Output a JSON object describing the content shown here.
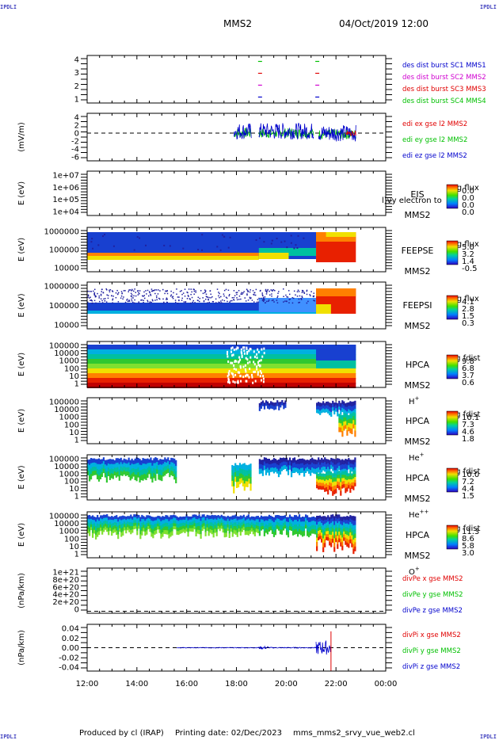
{
  "corner_label": "IPDLI",
  "header": {
    "spacecraft": "MMS2",
    "datetime": "04/Oct/2019 12:00"
  },
  "footer": {
    "produced": "Produced by cl (IRAP)",
    "printing": "Printing date: 02/Dec/2023",
    "file": "mms_mms2_srvy_vue_web2.cl"
  },
  "colors": {
    "red": "#e00000",
    "green": "#00c000",
    "blue": "#0000cc",
    "magenta": "#d000d0"
  },
  "chart_data": [
    {
      "type": "scatter",
      "id": "dist-burst",
      "yticks": [
        "4",
        "3",
        "2",
        "1"
      ],
      "ylim": [
        0.5,
        4.5
      ],
      "legend": [
        {
          "text": "des dist burst SC1 MMS1",
          "color": "#0000cc"
        },
        {
          "text": "des dist burst SC2 MMS2",
          "color": "#d000d0"
        },
        {
          "text": "des dist burst SC3 MMS3",
          "color": "#e00000"
        },
        {
          "text": "des dist burst SC4 MMS4",
          "color": "#00c000"
        }
      ],
      "marks": [
        {
          "time": 18.95,
          "level": 4,
          "color": "#00c000"
        },
        {
          "time": 18.95,
          "level": 3,
          "color": "#e00000"
        },
        {
          "time": 18.95,
          "level": 2,
          "color": "#d000d0"
        },
        {
          "time": 18.95,
          "level": 1,
          "color": "#0000cc"
        },
        {
          "time": 21.25,
          "level": 4,
          "color": "#00c000"
        },
        {
          "time": 21.25,
          "level": 3,
          "color": "#e00000"
        },
        {
          "time": 21.25,
          "level": 2,
          "color": "#d000d0"
        },
        {
          "time": 21.25,
          "level": 1,
          "color": "#0000cc"
        }
      ]
    },
    {
      "type": "line",
      "id": "edi-e",
      "ylabel": "(mV/m)",
      "ylim": [
        -7,
        5
      ],
      "yticks": [
        "4",
        "2",
        "0",
        "-2",
        "-4",
        "-6"
      ],
      "legend": [
        {
          "text": "edi ex gse l2 MMS2",
          "color": "#e00000"
        },
        {
          "text": "edi ey gse l2 MMS2",
          "color": "#00c000"
        },
        {
          "text": "edi ez gse l2 MMS2",
          "color": "#0000cc"
        }
      ]
    },
    {
      "type": "heatmap",
      "id": "eis",
      "ylabel": "E (eV)",
      "yticks": [
        "1e+07",
        "1e+06",
        "1e+05",
        "1e+04"
      ],
      "instrument": "EIS",
      "instrument2": "MMS2",
      "overlay": "l)vy electron to",
      "cbar_title": "Log flux",
      "cbar_ticks": [
        "0.0",
        "0.0",
        "0.0",
        "0.0"
      ]
    },
    {
      "type": "heatmap",
      "id": "feepse",
      "ylabel": "E (eV)",
      "yticks": [
        "1000000",
        "100000",
        "10000"
      ],
      "instrument": "FEEPSE",
      "instrument2": "MMS2",
      "cbar_title": "Log flux",
      "cbar_ticks": [
        "5.0",
        "3.2",
        "1.4",
        "-0.5"
      ]
    },
    {
      "type": "heatmap",
      "id": "feepsi",
      "ylabel": "E (eV)",
      "yticks": [
        "1000000",
        "100000",
        "10000"
      ],
      "instrument": "FEEPSI",
      "instrument2": "MMS2",
      "cbar_title": "Log flux",
      "cbar_ticks": [
        "4.1",
        "2.8",
        "1.5",
        "0.3"
      ]
    },
    {
      "type": "heatmap",
      "id": "hpca-h",
      "ylabel": "E (eV)",
      "yticks": [
        "100000",
        "10000",
        "1000",
        "100",
        "10",
        "1"
      ],
      "instrument": "HPCA",
      "instrument2": "MMS2",
      "species": "H",
      "charge": "+",
      "cbar_title": "Log fdist",
      "cbar_ticks": [
        "9.8",
        "6.8",
        "3.7",
        "0.6"
      ]
    },
    {
      "type": "heatmap",
      "id": "hpca-he",
      "ylabel": "E (eV)",
      "yticks": [
        "100000",
        "10000",
        "1000",
        "100",
        "10",
        "1"
      ],
      "instrument": "HPCA",
      "instrument2": "MMS2",
      "species": "He",
      "charge": "+",
      "cbar_title": "Log fdist",
      "cbar_ticks": [
        "10.1",
        "7.3",
        "4.6",
        "1.8"
      ]
    },
    {
      "type": "heatmap",
      "id": "hpca-hepp",
      "ylabel": "E (eV)",
      "yticks": [
        "100000",
        "10000",
        "1000",
        "100",
        "10",
        "1"
      ],
      "instrument": "HPCA",
      "instrument2": "MMS2",
      "species": "He",
      "charge": "++",
      "cbar_title": "Log fdist",
      "cbar_ticks": [
        "10.0",
        "7.2",
        "4.4",
        "1.5"
      ]
    },
    {
      "type": "heatmap",
      "id": "hpca-o",
      "ylabel": "E (eV)",
      "yticks": [
        "100000",
        "10000",
        "1000",
        "100",
        "10",
        "1"
      ],
      "instrument": "HPCA",
      "instrument2": "MMS2",
      "species": "O",
      "charge": "+",
      "cbar_title": "Log fdist",
      "cbar_ticks": [
        "11.3",
        "8.6",
        "5.8",
        "3.0"
      ]
    },
    {
      "type": "line",
      "id": "divpe",
      "ylabel": "(nPa/km)",
      "ylim": [
        -5e+19,
        1.1e+21
      ],
      "yticks": [
        "1e+21",
        "8e+20",
        "6e+20",
        "4e+20",
        "2e+20",
        "0"
      ],
      "legend": [
        {
          "text": "divPe x gse MMS2",
          "color": "#e00000"
        },
        {
          "text": "divPe y gse MMS2",
          "color": "#00c000"
        },
        {
          "text": "divPe z gse MMS2",
          "color": "#0000cc"
        }
      ]
    },
    {
      "type": "line",
      "id": "divpi",
      "ylabel": "(nPa/km)",
      "ylim": [
        -0.05,
        0.05
      ],
      "yticks": [
        "0.04",
        "0.02",
        "0.00",
        "-0.02",
        "-0.04"
      ],
      "legend": [
        {
          "text": "divPi x gse MMS2",
          "color": "#e00000"
        },
        {
          "text": "divPi y gse MMS2",
          "color": "#00c000"
        },
        {
          "text": "divPi z gse MMS2",
          "color": "#0000cc"
        }
      ]
    }
  ],
  "xaxis": {
    "ticks": [
      "12:00",
      "14:00",
      "16:00",
      "18:00",
      "20:00",
      "22:00",
      "00:00"
    ],
    "tick_hours": [
      12,
      14,
      16,
      18,
      20,
      22,
      24
    ],
    "range": [
      12,
      24
    ]
  }
}
